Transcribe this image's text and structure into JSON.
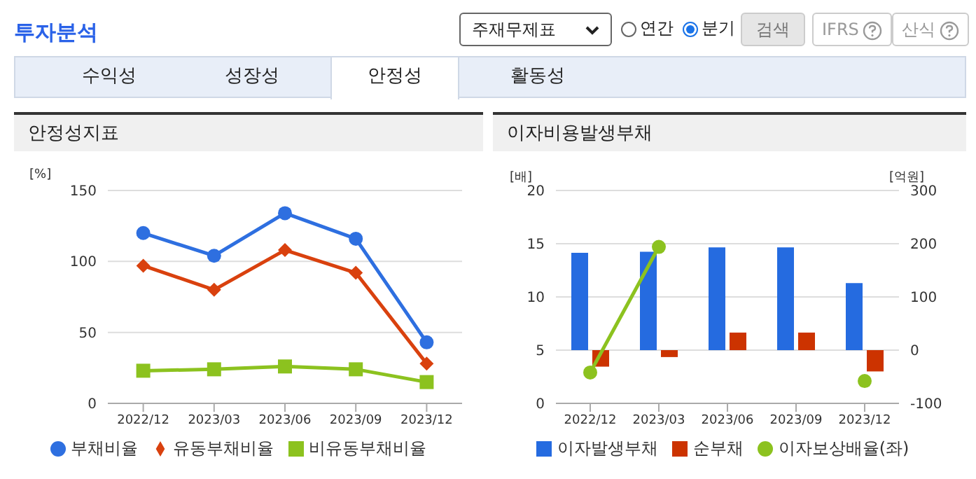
{
  "chart_data": [
    {
      "type": "other",
      "title": "투자분석",
      "annotations": [
        "주재무제표",
        "연간",
        "분기",
        "검색",
        "IFRS",
        "산식",
        "수익성",
        "성장성",
        "안정성",
        "활동성"
      ]
    },
    {
      "type": "line",
      "title": "안정성지표",
      "ylabel": "[%]",
      "categories": [
        "2022/12",
        "2023/03",
        "2023/06",
        "2023/09",
        "2023/12"
      ],
      "series": [
        {
          "name": "부채비율",
          "color": "#2e6fe0",
          "marker": "circle",
          "values": [
            120,
            104,
            134,
            116,
            43
          ]
        },
        {
          "name": "유동부채비율",
          "color": "#d9410e",
          "marker": "diamond",
          "values": [
            97,
            80,
            108,
            92,
            28
          ]
        },
        {
          "name": "비유동부채비율",
          "color": "#8cc21f",
          "marker": "square",
          "values": [
            23,
            24,
            26,
            24,
            15
          ]
        }
      ],
      "ylim": [
        0,
        150
      ],
      "yticks": [
        0,
        50,
        100,
        150
      ],
      "grid": "y",
      "legend": "bottom"
    },
    {
      "type": "bar",
      "title": "이자비용발생부채",
      "ylabel": "[배]",
      "y2label": "[억원]",
      "categories": [
        "2022/12",
        "2023/03",
        "2023/06",
        "2023/09",
        "2023/12"
      ],
      "series": [
        {
          "name": "이자발생부채",
          "type": "bar",
          "axis": "y2",
          "color": "#256be0",
          "values": [
            183,
            185,
            193,
            193,
            126
          ]
        },
        {
          "name": "순부채",
          "type": "bar",
          "axis": "y2",
          "color": "#cc3300",
          "values": [
            -31,
            -13,
            33,
            33,
            -40
          ]
        },
        {
          "name": "이자보상배율(좌)",
          "type": "line",
          "color": "#8cc21f",
          "marker": "circle",
          "values": [
            2.9,
            14.7,
            null,
            null,
            2.1
          ]
        }
      ],
      "ylim": [
        0,
        20
      ],
      "yticks": [
        0,
        5,
        10,
        15,
        20
      ],
      "y2lim": [
        -100,
        300
      ],
      "y2ticks": [
        -100,
        0,
        100,
        200,
        300
      ],
      "grid": "y",
      "legend": "bottom"
    }
  ]
}
